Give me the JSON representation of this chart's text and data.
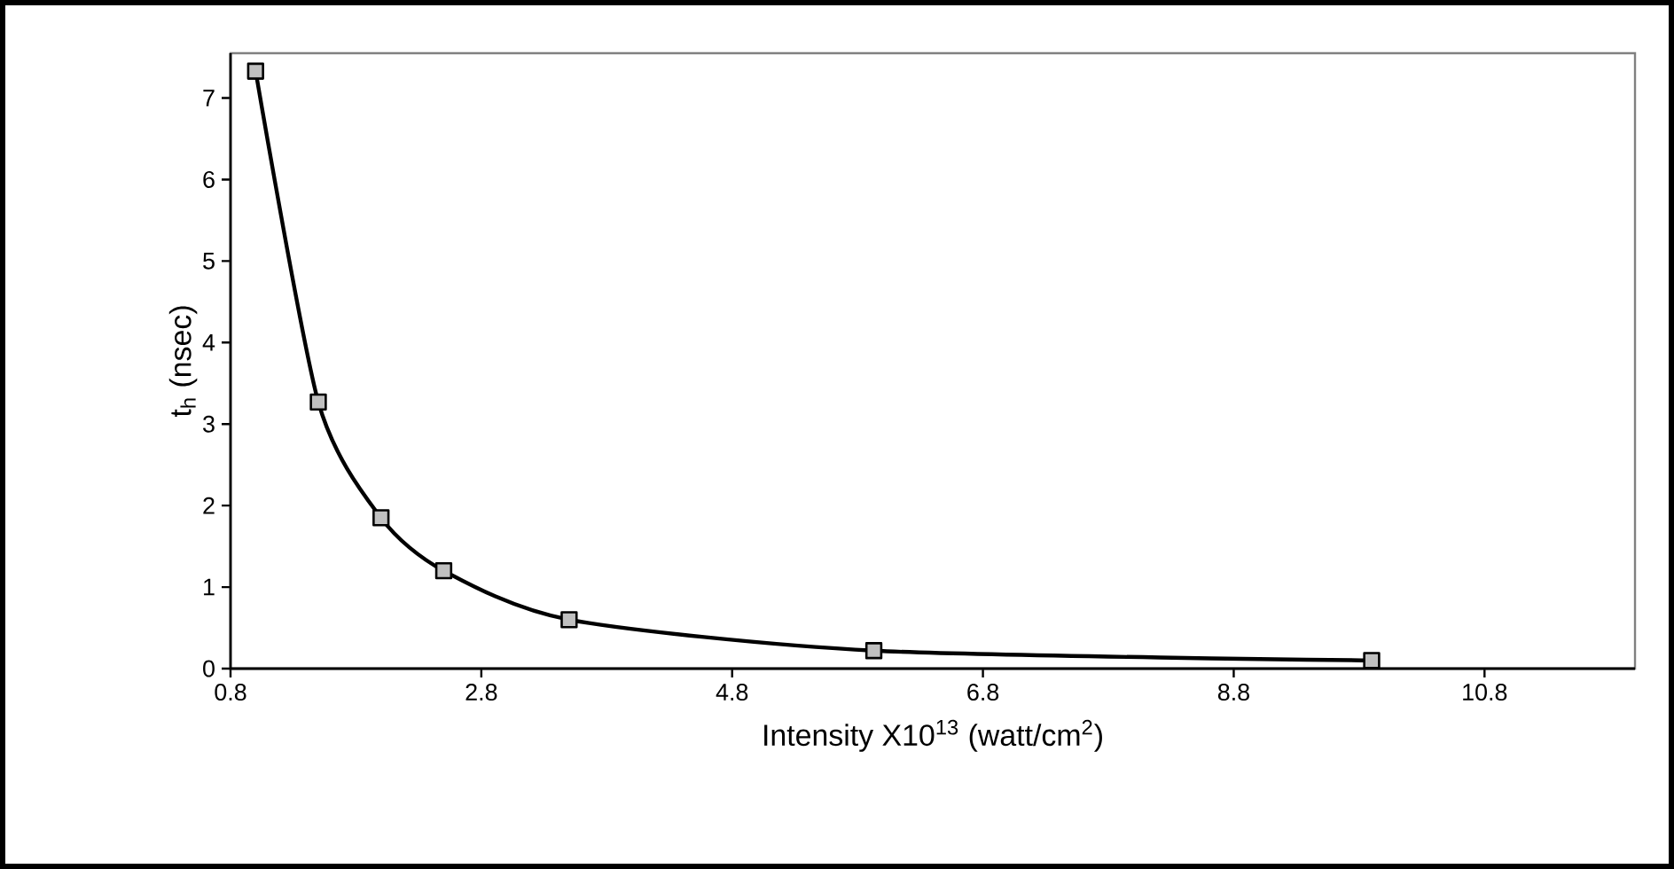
{
  "chart_data": {
    "type": "line",
    "xlabel": "Intensity X10$^{13}$ (watt/cm$^{2}$)",
    "ylabel": "t$_{h}$ (nsec)",
    "x": [
      1.0,
      1.5,
      2.0,
      2.5,
      3.5,
      5.93,
      9.9
    ],
    "series": [
      {
        "color": "#000000",
        "values": [
          7.33,
          3.27,
          1.85,
          1.2,
          0.6,
          0.22,
          0.1
        ]
      }
    ],
    "xlim": [
      0.8,
      12.0
    ],
    "ylim": [
      0,
      7.55
    ],
    "xticks": [
      0.8,
      2.8,
      4.8,
      6.8,
      8.8,
      10.8
    ],
    "yticks": [
      0,
      1,
      2,
      3,
      4,
      5,
      6,
      7
    ],
    "grid": false,
    "marker": "square",
    "line_style": "solid"
  }
}
